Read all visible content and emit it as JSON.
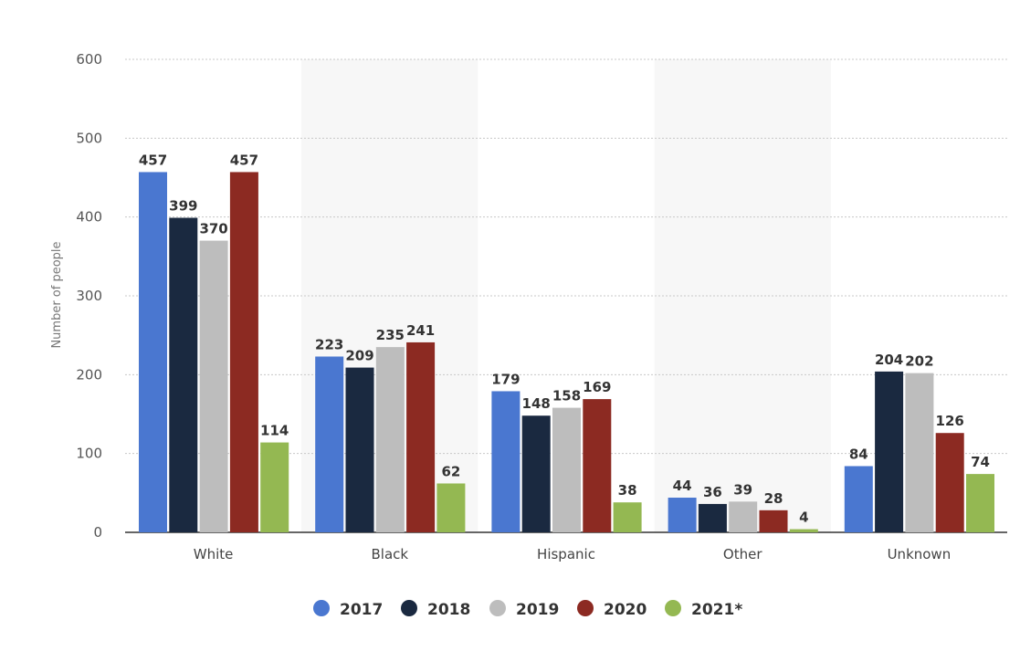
{
  "chart_data": {
    "type": "bar",
    "categories": [
      "White",
      "Black",
      "Hispanic",
      "Other",
      "Unknown"
    ],
    "series": [
      {
        "name": "2017",
        "color": "#4a77d0",
        "values": [
          457,
          223,
          179,
          44,
          84
        ]
      },
      {
        "name": "2018",
        "color": "#1a2940",
        "values": [
          399,
          209,
          148,
          36,
          204
        ]
      },
      {
        "name": "2019",
        "color": "#bdbdbd",
        "values": [
          370,
          235,
          158,
          39,
          202
        ]
      },
      {
        "name": "2020",
        "color": "#8c2a22",
        "values": [
          457,
          241,
          169,
          28,
          126
        ]
      },
      {
        "name": "2021*",
        "color": "#94b852",
        "values": [
          114,
          62,
          38,
          4,
          74
        ]
      }
    ],
    "xlabel": "",
    "ylabel": "Number of people",
    "ylim": [
      0,
      600
    ],
    "yticks": [
      0,
      100,
      200,
      300,
      400,
      500,
      600
    ],
    "grid": true,
    "legend": "bottom",
    "data_labels": true
  }
}
